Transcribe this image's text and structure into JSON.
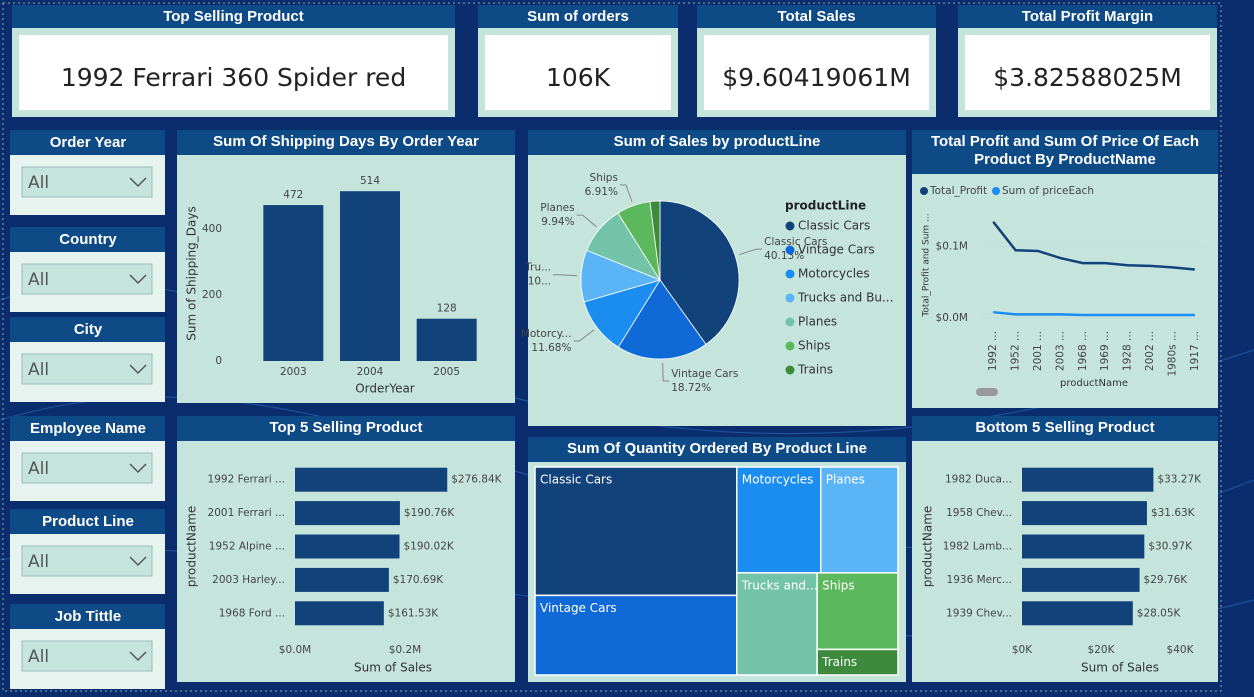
{
  "cards": [
    {
      "title": "Top Selling Product",
      "value": "1992 Ferrari 360 Spider red"
    },
    {
      "title": "Sum of orders",
      "value": "106K"
    },
    {
      "title": "Total Sales",
      "value": "$9.60419061M"
    },
    {
      "title": "Total Profit Margin",
      "value": "$3.82588025M"
    }
  ],
  "slicers": [
    {
      "label": "Order Year",
      "value": "All"
    },
    {
      "label": "Country",
      "value": "All"
    },
    {
      "label": "City",
      "value": "All"
    },
    {
      "label": "Employee Name",
      "value": "All"
    },
    {
      "label": "Product Line",
      "value": "All"
    },
    {
      "label": "Job Tittle",
      "value": "All"
    }
  ],
  "charts": [
    {
      "type": "bar",
      "title": "Sum Of Shipping Days By Order Year",
      "categories": [
        "2003",
        "2004",
        "2005"
      ],
      "values": [
        472,
        514,
        128
      ],
      "color": "#12427a",
      "x_label": "OrderYear",
      "y_label": "Sum of Shipping_Days",
      "ylim": [
        0,
        560
      ],
      "yticks": [
        0,
        200,
        400
      ]
    },
    {
      "type": "pie",
      "title": "Sum of Sales by productLine",
      "legend_title": "productLine",
      "categories": [
        "Classic Cars",
        "Vintage Cars",
        "Motorcycles",
        "Trucks and Bu...",
        "Planes",
        "Ships",
        "Trains"
      ],
      "slice_labels": [
        "Classic Cars",
        "Vintage Cars",
        "Motorcy...",
        "Tru...",
        "Planes",
        "Ships",
        null
      ],
      "values": [
        40.13,
        18.72,
        11.68,
        10.6,
        9.94,
        6.91,
        2.02
      ],
      "value_labels": [
        "40.13%",
        "18.72%",
        "11.68%",
        "10...",
        "9.94%",
        "6.91%",
        null
      ],
      "colors": [
        "#12427a",
        "#0f6ad8",
        "#1b8cf0",
        "#5bb4f5",
        "#72c3a8",
        "#5cb85c",
        "#3d8a3d"
      ]
    },
    {
      "type": "line",
      "title": "Total Profit and Sum Of Price Of Each Product By ProductName",
      "categories": [
        "1992 ...",
        "1952 ...",
        "2001 ...",
        "2003 ...",
        "1968 ...",
        "1969 ...",
        "1928 ...",
        "2002 ...",
        "1980s ...",
        "1917 ..."
      ],
      "series": [
        {
          "name": "Total_Profit",
          "color": "#12427a",
          "values": [
            135000,
            95000,
            94000,
            84000,
            77000,
            77000,
            74000,
            73000,
            71000,
            68000
          ]
        },
        {
          "name": "Sum of priceEach",
          "color": "#1b8cf0",
          "values": [
            8000,
            5000,
            5000,
            5000,
            4000,
            4000,
            4000,
            4000,
            4000,
            4000
          ]
        }
      ],
      "x_label": "productName",
      "y_label": "Total_Profit and Sum ...",
      "ylim": [
        -10000,
        160000
      ],
      "yticks": [
        {
          "value": 0,
          "label": "$0.0M"
        },
        {
          "value": 100000,
          "label": "$0.1M"
        }
      ]
    },
    {
      "type": "hbar",
      "title": "Top 5 Selling Product",
      "categories": [
        "1992 Ferrari ...",
        "2001 Ferrari ...",
        "1952 Alpine ...",
        "2003 Harley...",
        "1968 Ford ..."
      ],
      "values": [
        276840,
        190760,
        190020,
        170690,
        161530
      ],
      "value_labels": [
        "$276.84K",
        "$190.76K",
        "$190.02K",
        "$170.69K",
        "$161.53K"
      ],
      "color": "#12427a",
      "x_label": "Sum of Sales",
      "y_label": "productName",
      "xlim": [
        0,
        400000
      ],
      "xticks": [
        {
          "value": 0,
          "label": "$0.0M"
        },
        {
          "value": 200000,
          "label": "$0.2M"
        }
      ]
    },
    {
      "type": "treemap",
      "title": "Sum Of Quantity Ordered By Product Line",
      "categories": [
        "Classic Cars",
        "Vintage Cars",
        "Motorcycles",
        "Planes",
        "Trucks and...",
        "Ships",
        "Trains"
      ],
      "values": [
        33992,
        21069,
        11663,
        10727,
        10777,
        8127,
        2712
      ],
      "colors": [
        "#12427a",
        "#0f6ad8",
        "#1b8cf0",
        "#5bb4f5",
        "#72c3a8",
        "#5cb85c",
        "#3d8a3d"
      ]
    },
    {
      "type": "hbar",
      "title": "Bottom 5 Selling Product",
      "categories": [
        "1982 Duca...",
        "1958 Chev...",
        "1982 Lamb...",
        "1936 Merc...",
        "1939 Chev..."
      ],
      "values": [
        33270,
        31630,
        30970,
        29760,
        28050
      ],
      "value_labels": [
        "$33.27K",
        "$31.63K",
        "$30.97K",
        "$29.76K",
        "$28.05K"
      ],
      "color": "#12427a",
      "x_label": "Sum of Sales",
      "y_label": "productName",
      "xlim": [
        0,
        40000
      ],
      "xticks": [
        {
          "value": 0,
          "label": "$0K"
        },
        {
          "value": 20000,
          "label": "$20K"
        },
        {
          "value": 40000,
          "label": "$40K"
        }
      ]
    }
  ]
}
